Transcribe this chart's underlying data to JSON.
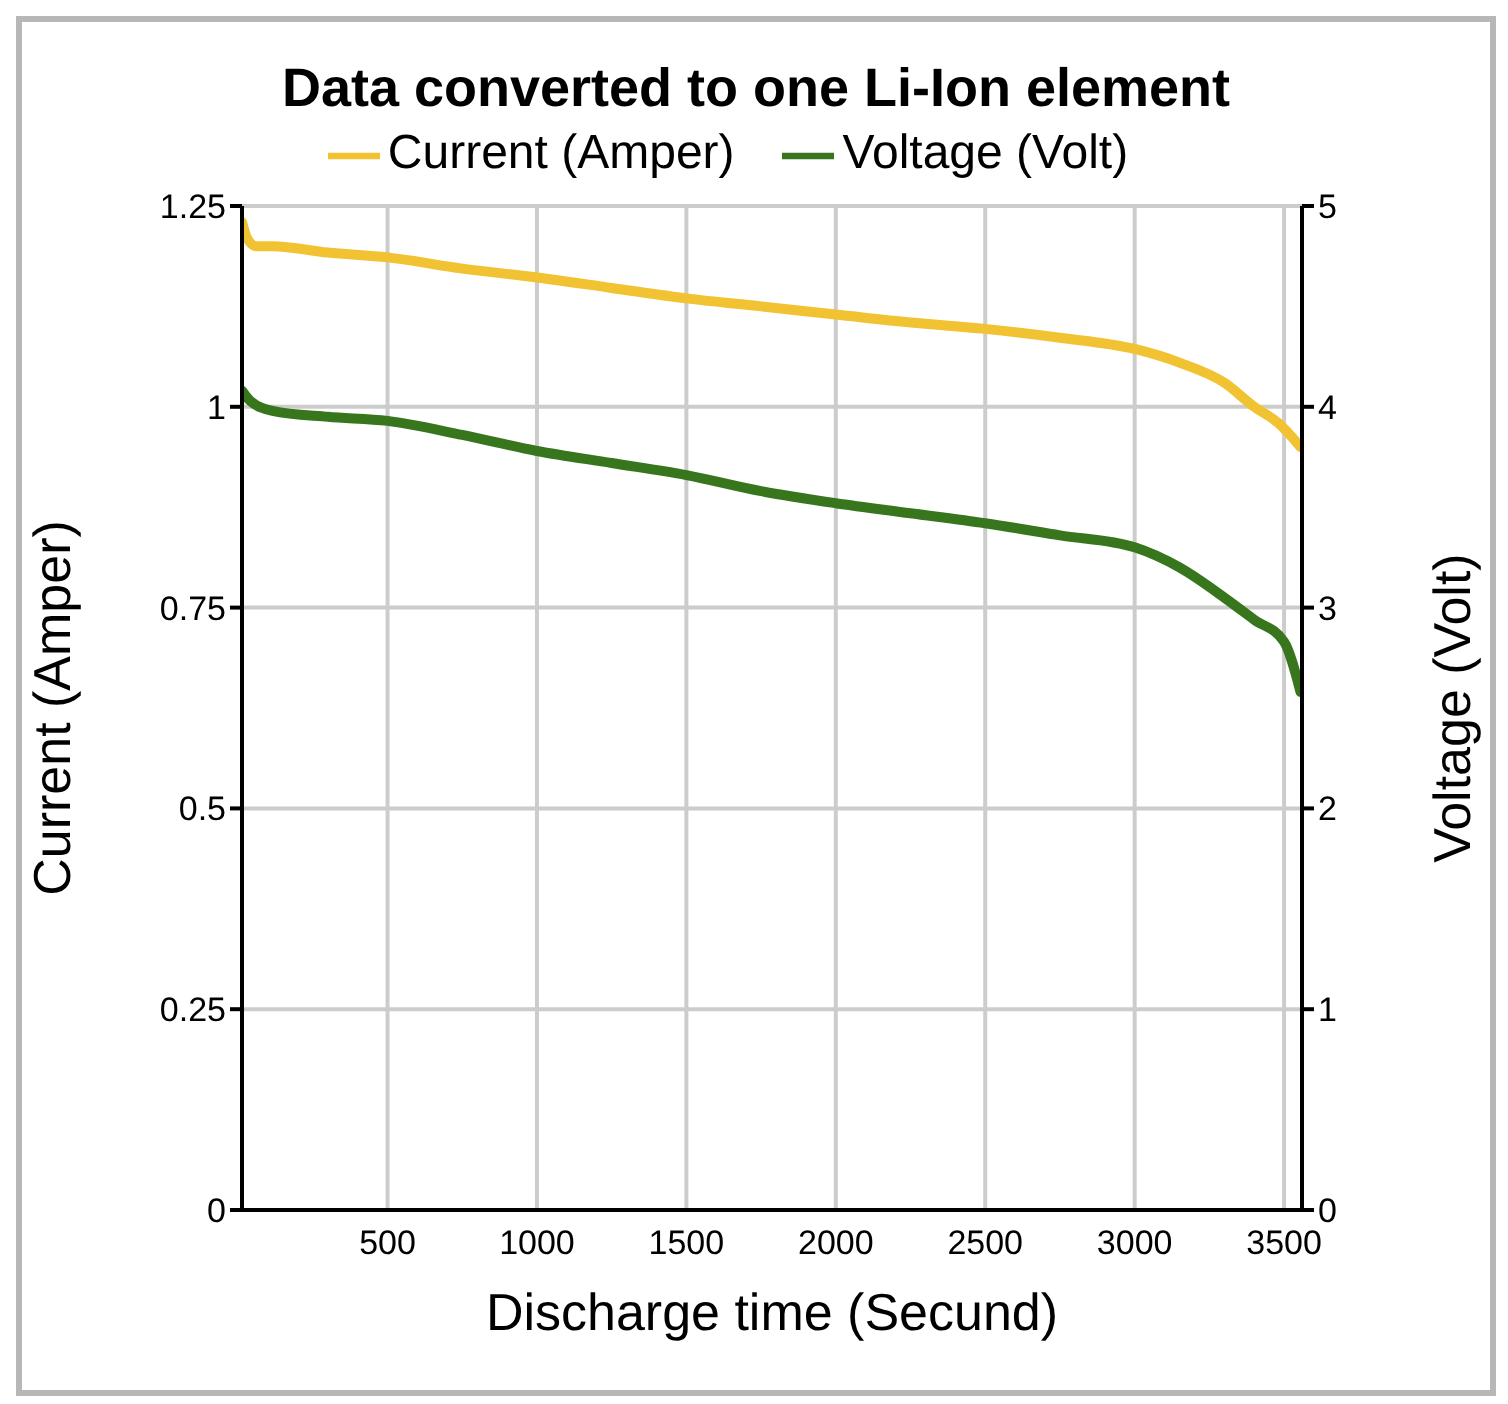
{
  "chart_data": {
    "type": "line",
    "title": "Data converted to one Li-Ion element",
    "xlabel": "Discharge time (Secund)",
    "ylabel": "Current (Amper)",
    "y2label": "Voltage (Volt)",
    "xlim": [
      13,
      3560
    ],
    "xticks": [
      500,
      1000,
      1500,
      2000,
      2500,
      3000,
      3500
    ],
    "ylim": [
      0,
      1.25
    ],
    "yticks": [
      0,
      0.25,
      0.5,
      0.75,
      1,
      1.25
    ],
    "y2lim": [
      0,
      5
    ],
    "y2ticks": [
      0,
      1,
      2,
      3,
      4,
      5
    ],
    "grid": true,
    "legend": "top",
    "marker": "none",
    "line_style": "solid",
    "series": [
      {
        "name": "Voltage (Volt)",
        "color": "#38761d",
        "axis": "y2",
        "x": [
          13,
          40,
          115,
          300,
          500,
          750,
          1000,
          1250,
          1500,
          1750,
          2000,
          2250,
          2500,
          2750,
          3000,
          3150,
          3300,
          3400,
          3500,
          3555
        ],
        "values": [
          4.08,
          4.03,
          3.98,
          3.95,
          3.93,
          3.86,
          3.78,
          3.72,
          3.66,
          3.58,
          3.52,
          3.47,
          3.42,
          3.36,
          3.3,
          3.2,
          3.05,
          2.94,
          2.83,
          2.58
        ]
      },
      {
        "name": "Current (Amper)",
        "color": "#f1c232",
        "x": [
          13,
          30,
          60,
          115,
          300,
          500,
          750,
          1000,
          1250,
          1500,
          1750,
          2000,
          2250,
          2500,
          2750,
          3000,
          3150,
          3300,
          3400,
          3480,
          3555
        ],
        "values": [
          1.23,
          1.21,
          1.2,
          1.2,
          1.192,
          1.186,
          1.172,
          1.161,
          1.148,
          1.135,
          1.125,
          1.115,
          1.105,
          1.097,
          1.086,
          1.072,
          1.055,
          1.03,
          1.0,
          0.98,
          0.95
        ]
      }
    ]
  }
}
